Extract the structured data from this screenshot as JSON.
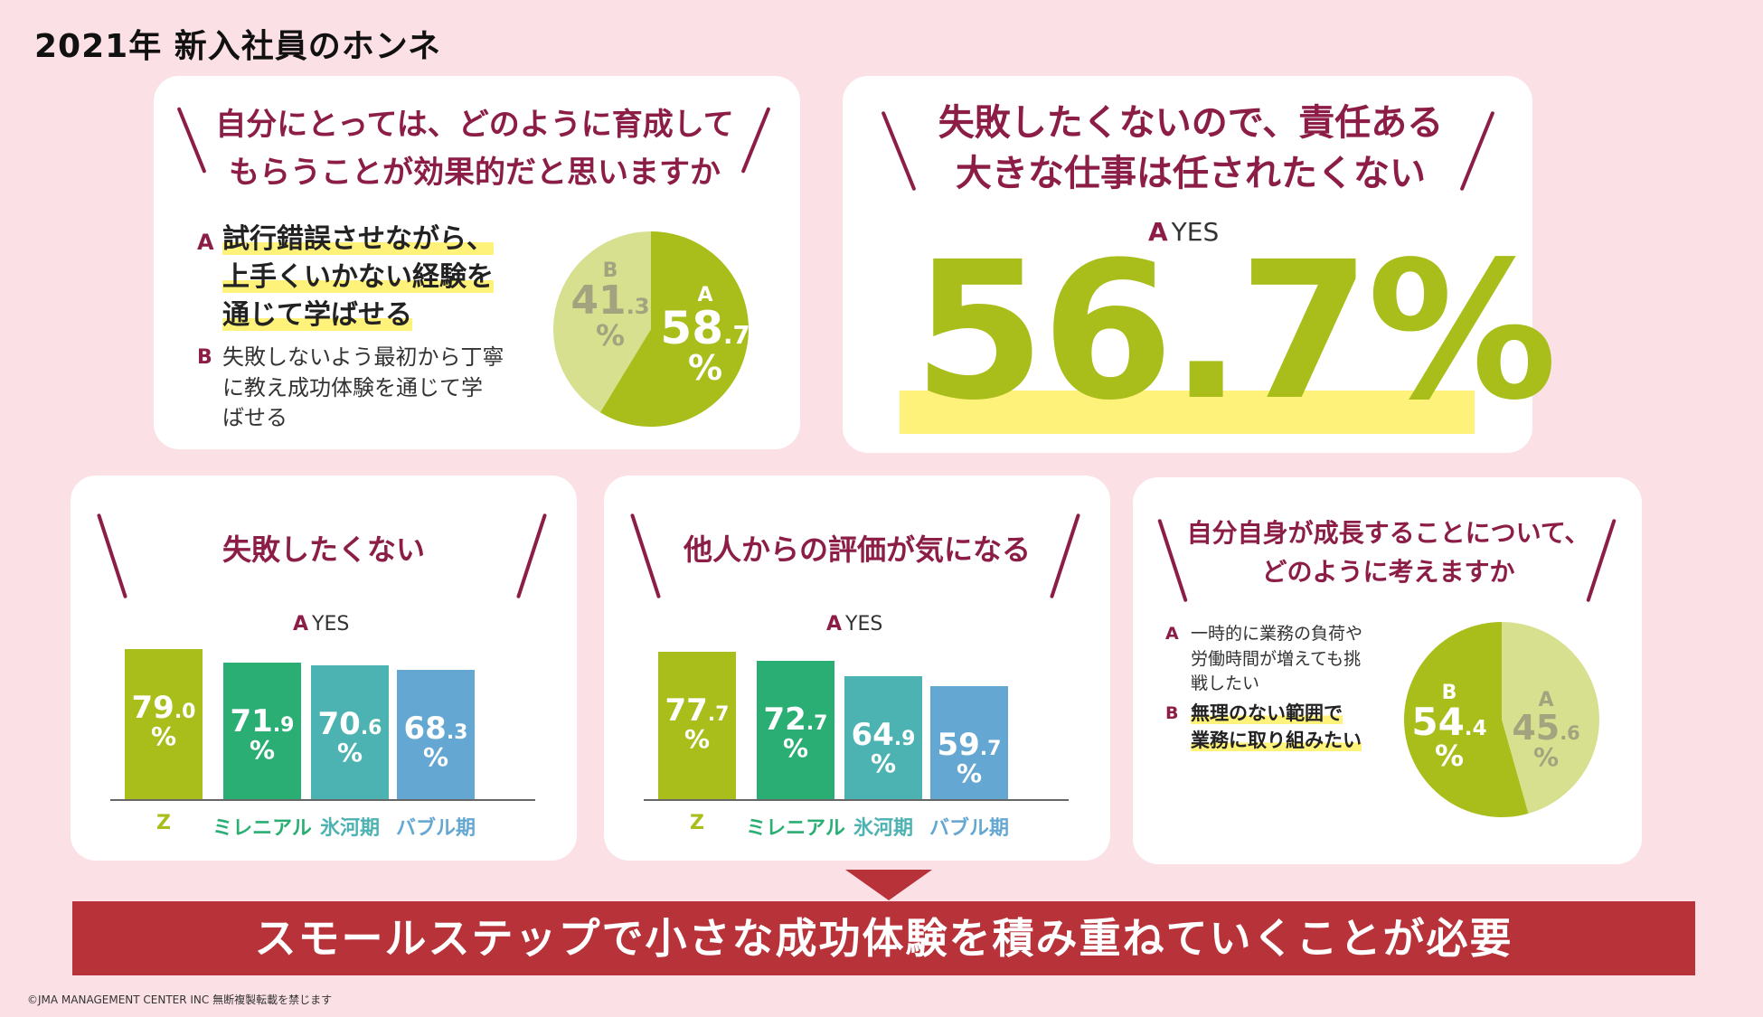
{
  "page_title": "2021年 新入社員のホンネ",
  "card1": {
    "question_line1": "自分にとっては、どのように育成して",
    "question_line2": "もらうことが効果的だと思いますか",
    "option_a_letter": "A",
    "option_a_lines": [
      "試行錯誤させながら、",
      "上手くいかない経験を",
      "通じて学ばせる"
    ],
    "option_b_letter": "B",
    "option_b_lines": [
      "失敗しないよう最初から丁寧",
      "に教え成功体験を通じて学",
      "ばせる"
    ],
    "pie": {
      "a_label": "A",
      "a_int": "58",
      "a_dec": ".7",
      "a_pct": "%",
      "b_label": "B",
      "b_int": "41",
      "b_dec": ".3",
      "b_pct": "%"
    }
  },
  "card2": {
    "question_line1": "失敗したくないので、責任ある",
    "question_line2": "大きな仕事は任されたくない",
    "answer_letter": "A",
    "answer_label": "YES",
    "big_value": "56.7%"
  },
  "card3": {
    "question": "失敗したくない",
    "answer_letter": "A",
    "answer_label": "YES",
    "categories": [
      "Z",
      "ミレニアル",
      "氷河期",
      "バブル期"
    ],
    "value_int": [
      "79",
      "71",
      "70",
      "68"
    ],
    "value_dec": [
      ".0",
      ".9",
      ".6",
      ".3"
    ],
    "pct": "%"
  },
  "card4": {
    "question": "他人からの評価が気になる",
    "answer_letter": "A",
    "answer_label": "YES",
    "categories": [
      "Z",
      "ミレニアル",
      "氷河期",
      "バブル期"
    ],
    "value_int": [
      "77",
      "72",
      "64",
      "59"
    ],
    "value_dec": [
      ".7",
      ".7",
      ".9",
      ".7"
    ],
    "pct": "%"
  },
  "card5": {
    "question_line1": "自分自身が成長することについて、",
    "question_line2": "どのように考えますか",
    "option_a_letter": "A",
    "option_a_lines": [
      "一時的に業務の負荷や",
      "労働時間が増えても挑",
      "戦したい"
    ],
    "option_b_letter": "B",
    "option_b_lines": [
      "無理のない範囲で",
      "業務に取り組みたい"
    ],
    "pie": {
      "a_label": "A",
      "a_int": "45",
      "a_dec": ".6",
      "a_pct": "%",
      "b_label": "B",
      "b_int": "54",
      "b_dec": ".4",
      "b_pct": "%"
    }
  },
  "banner": "スモールステップで小さな成功体験を積み重ねていくことが必要",
  "footer": "©JMA MANAGEMENT CENTER INC  無断複製転載を禁じます",
  "colors": {
    "background": "#fbe0e6",
    "accent": "#8c1d47",
    "lime": "#a9be1a",
    "pale_lime": "#d7e08f",
    "pale_olive": "#a3a47f",
    "bar_z": "#a9be1a",
    "bar_millennial": "#2aae74",
    "bar_hyogaki": "#4cb2b2",
    "bar_bubble": "#64a7d2",
    "banner": "#b8323a",
    "highlight": "#fff27a"
  },
  "chart_data": [
    {
      "type": "pie",
      "title": "自分にとっては、どのように育成してもらうことが効果的だと思いますか",
      "labels": [
        "A",
        "B"
      ],
      "values": [
        58.7,
        41.3
      ],
      "unit": "%"
    },
    {
      "type": "bar",
      "title": "失敗したくないので、責任ある大きな仕事は任されたくない",
      "categories": [
        "YES"
      ],
      "values": [
        56.7
      ],
      "unit": "%"
    },
    {
      "type": "bar",
      "title": "失敗したくない",
      "categories": [
        "Z",
        "ミレニアル",
        "氷河期",
        "バブル期"
      ],
      "values": [
        79.0,
        71.9,
        70.6,
        68.3
      ],
      "unit": "%"
    },
    {
      "type": "bar",
      "title": "他人からの評価が気になる",
      "categories": [
        "Z",
        "ミレニアル",
        "氷河期",
        "バブル期"
      ],
      "values": [
        77.7,
        72.7,
        64.9,
        59.7
      ],
      "unit": "%"
    },
    {
      "type": "pie",
      "title": "自分自身が成長することについて、どのように考えますか",
      "labels": [
        "A",
        "B"
      ],
      "values": [
        45.6,
        54.4
      ],
      "unit": "%"
    }
  ]
}
